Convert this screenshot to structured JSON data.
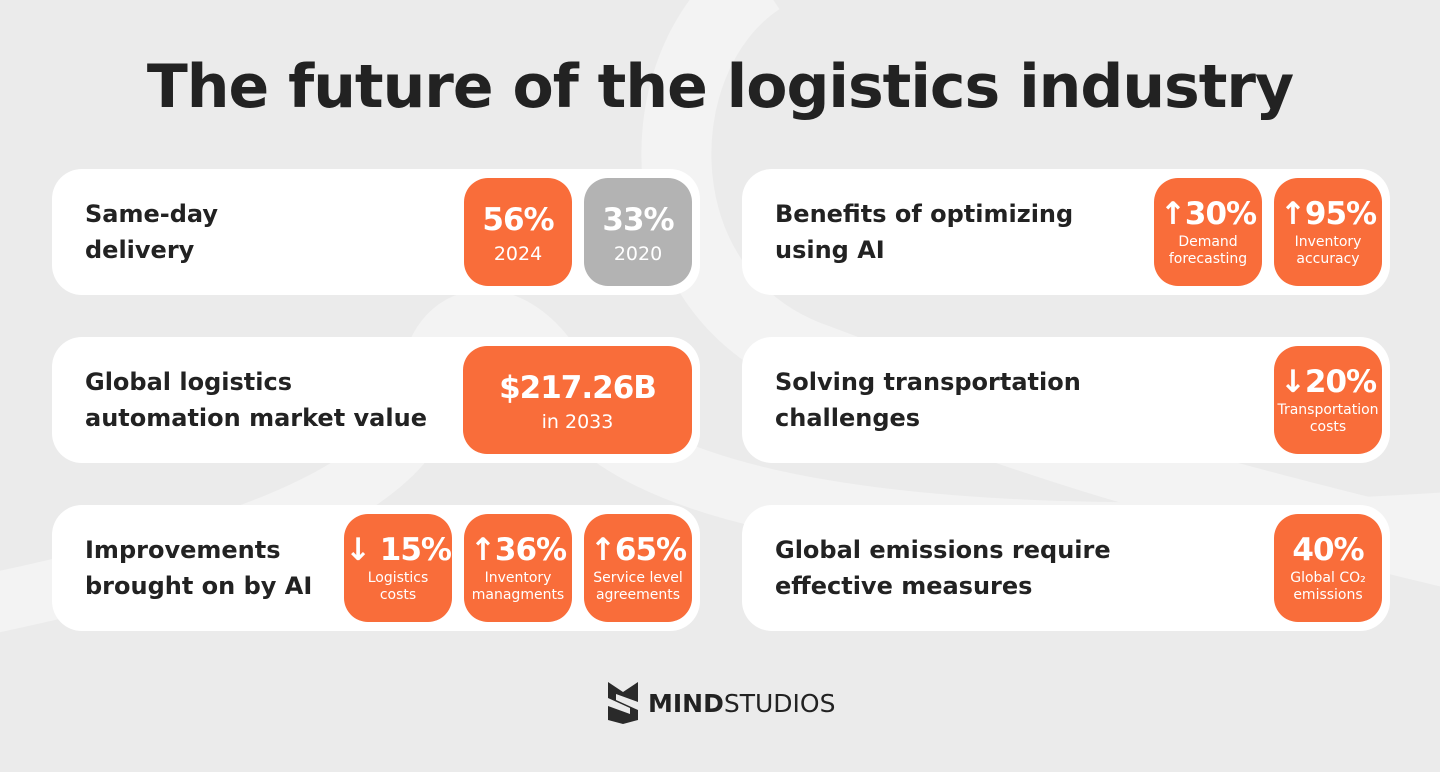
{
  "title": "The future of the logistics industry",
  "cards": [
    {
      "label": [
        "Same-day",
        "delivery"
      ],
      "badges": [
        {
          "value": "56%",
          "caption": "2024",
          "color": "#f96d3a"
        },
        {
          "value": "33%",
          "caption": "2020",
          "color": "#b3b3b3"
        }
      ]
    },
    {
      "label": [
        "Benefits of optimizing",
        "using AI"
      ],
      "badges": [
        {
          "value": "↑30%",
          "caption": "Demand forecasting",
          "color": "#f96d3a"
        },
        {
          "value": "↑95%",
          "caption": "Inventory accuracy",
          "color": "#f96d3a"
        }
      ]
    },
    {
      "label": [
        "Global logistics",
        "automation market value"
      ],
      "badges": [
        {
          "value": "$217.26B",
          "caption": "in 2033",
          "color": "#f96d3a"
        }
      ]
    },
    {
      "label": [
        "Solving transportation",
        "challenges"
      ],
      "badges": [
        {
          "value": "↓20%",
          "caption": "Transportation costs",
          "color": "#f96d3a"
        }
      ]
    },
    {
      "label": [
        "Improvements",
        "brought on by AI"
      ],
      "badges": [
        {
          "value": "↓ 15%",
          "caption": "Logistics costs",
          "color": "#f96d3a"
        },
        {
          "value": "↑36%",
          "caption": "Inventory managments",
          "color": "#f96d3a"
        },
        {
          "value": "↑65%",
          "caption": "Service level agreements",
          "color": "#f96d3a"
        }
      ]
    },
    {
      "label": [
        "Global emissions require",
        "effective measures"
      ],
      "badges": [
        {
          "value": "40%",
          "caption": "Global CO₂ emissions",
          "color": "#f96d3a"
        }
      ]
    }
  ],
  "logo": {
    "bold": "MIND",
    "regular": "STUDIOS"
  }
}
